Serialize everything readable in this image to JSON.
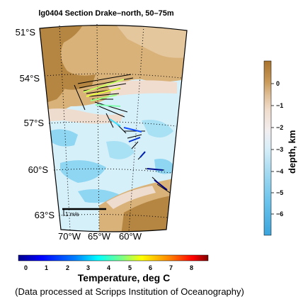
{
  "title": "lg0404 Section Drake–north, 50–75m",
  "latitude_labels": [
    "51°S",
    "54°S",
    "57°S",
    "60°S",
    "63°S"
  ],
  "longitude_labels": [
    "70°W",
    "65°W",
    "60°W"
  ],
  "scale_bar_label": "1 m/s",
  "temperature_colorbar": {
    "label": "Temperature, deg C",
    "ticks": [
      "0",
      "1",
      "2",
      "3",
      "4",
      "5",
      "6",
      "7",
      "8"
    ],
    "colors": [
      "#00008f",
      "#0000ff",
      "#0080ff",
      "#00ffff",
      "#80ff80",
      "#ffff00",
      "#ff8000",
      "#ff0000",
      "#800000"
    ]
  },
  "depth_colorbar": {
    "label": "depth, km",
    "ticks": [
      "0",
      "−1",
      "−2",
      "−3",
      "−4",
      "−5",
      "−6"
    ],
    "colors": [
      "#b07c34",
      "#d8b27a",
      "#f0dcc8",
      "#e8f4f8",
      "#a8dcf0",
      "#70c8ec",
      "#3aa8e0"
    ]
  },
  "credit": "(Data processed at Scripps Institution of Oceanography)"
}
